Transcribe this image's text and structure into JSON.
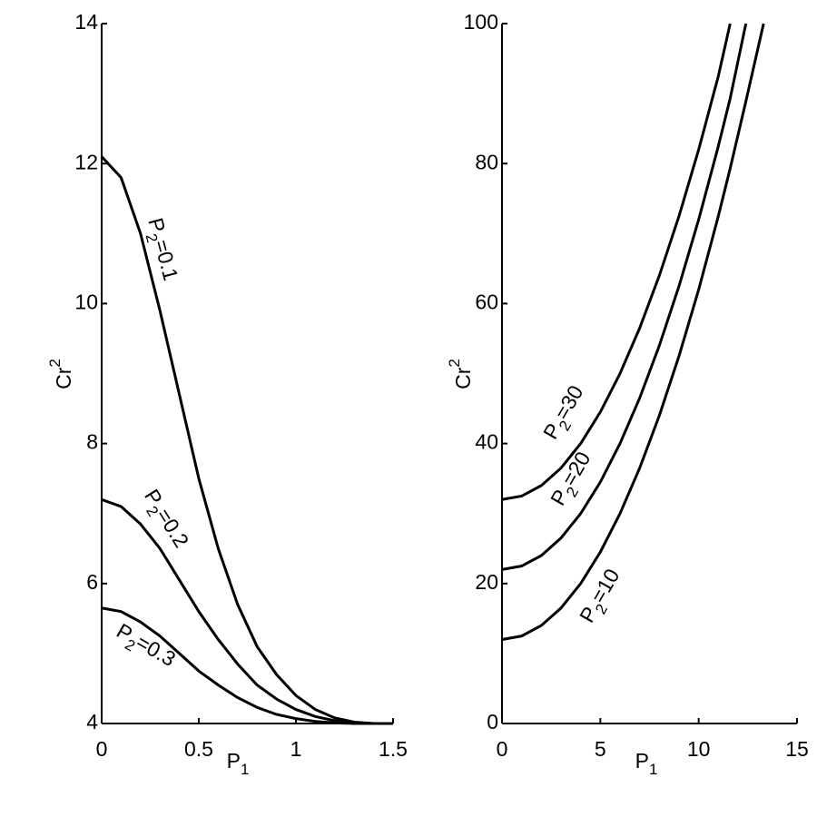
{
  "chart_data": [
    {
      "type": "line",
      "x_label": [
        "P",
        "1"
      ],
      "y_label": [
        "Cr",
        "2"
      ],
      "x": [
        0,
        0.1,
        0.2,
        0.3,
        0.4,
        0.5,
        0.6,
        0.7,
        0.8,
        0.9,
        1.0,
        1.1,
        1.2,
        1.3,
        1.4,
        1.5
      ],
      "series": [
        {
          "name": [
            "P",
            "2",
            "=0.1"
          ],
          "color": "#000000",
          "values": [
            12.1,
            11.8,
            11.0,
            9.9,
            8.7,
            7.5,
            6.5,
            5.7,
            5.1,
            4.7,
            4.4,
            4.2,
            4.08,
            4.02,
            4.0,
            4.0
          ]
        },
        {
          "name": [
            "P",
            "2",
            "=0.2"
          ],
          "color": "#000000",
          "values": [
            7.2,
            7.1,
            6.85,
            6.5,
            6.05,
            5.6,
            5.2,
            4.85,
            4.55,
            4.35,
            4.2,
            4.1,
            4.04,
            4.01,
            4.0,
            4.0
          ]
        },
        {
          "name": [
            "P",
            "2",
            "=0.3"
          ],
          "color": "#000000",
          "values": [
            5.65,
            5.6,
            5.45,
            5.25,
            5.0,
            4.75,
            4.55,
            4.37,
            4.23,
            4.13,
            4.07,
            4.03,
            4.01,
            4.0,
            4.0,
            4.0
          ]
        }
      ],
      "xlim": [
        0,
        1.5
      ],
      "xticks": [
        0,
        0.5,
        1,
        1.5
      ],
      "ylim": [
        4,
        14
      ],
      "yticks": [
        4,
        6,
        8,
        10,
        12,
        14
      ]
    },
    {
      "type": "line",
      "x_label": [
        "P",
        "1"
      ],
      "y_label": [
        "Cr",
        "2"
      ],
      "x": [
        0,
        1,
        2,
        3,
        4,
        5,
        6,
        7,
        8,
        9,
        10,
        11,
        11.6,
        12.4,
        13.3
      ],
      "series": [
        {
          "name": [
            "P",
            "2",
            "=30"
          ],
          "color": "#000000",
          "values": [
            32,
            32.5,
            34,
            36.5,
            40,
            44.5,
            50,
            56.5,
            64,
            72.5,
            82,
            92.5,
            100,
            null,
            null
          ]
        },
        {
          "name": [
            "P",
            "2",
            "=20"
          ],
          "color": "#000000",
          "values": [
            22,
            22.5,
            24,
            26.5,
            30,
            34.5,
            40,
            46.5,
            54,
            62.5,
            72,
            82.5,
            89.3,
            100,
            null
          ]
        },
        {
          "name": [
            "P",
            "2",
            "=10"
          ],
          "color": "#000000",
          "values": [
            12,
            12.5,
            14,
            16.5,
            20,
            24.5,
            30,
            36.5,
            44,
            52.5,
            62,
            72.5,
            79.3,
            88.9,
            100
          ]
        }
      ],
      "xlim": [
        0,
        15
      ],
      "xticks": [
        0,
        5,
        10,
        15
      ],
      "ylim": [
        0,
        100
      ],
      "yticks": [
        0,
        20,
        40,
        60,
        80,
        100
      ]
    }
  ]
}
